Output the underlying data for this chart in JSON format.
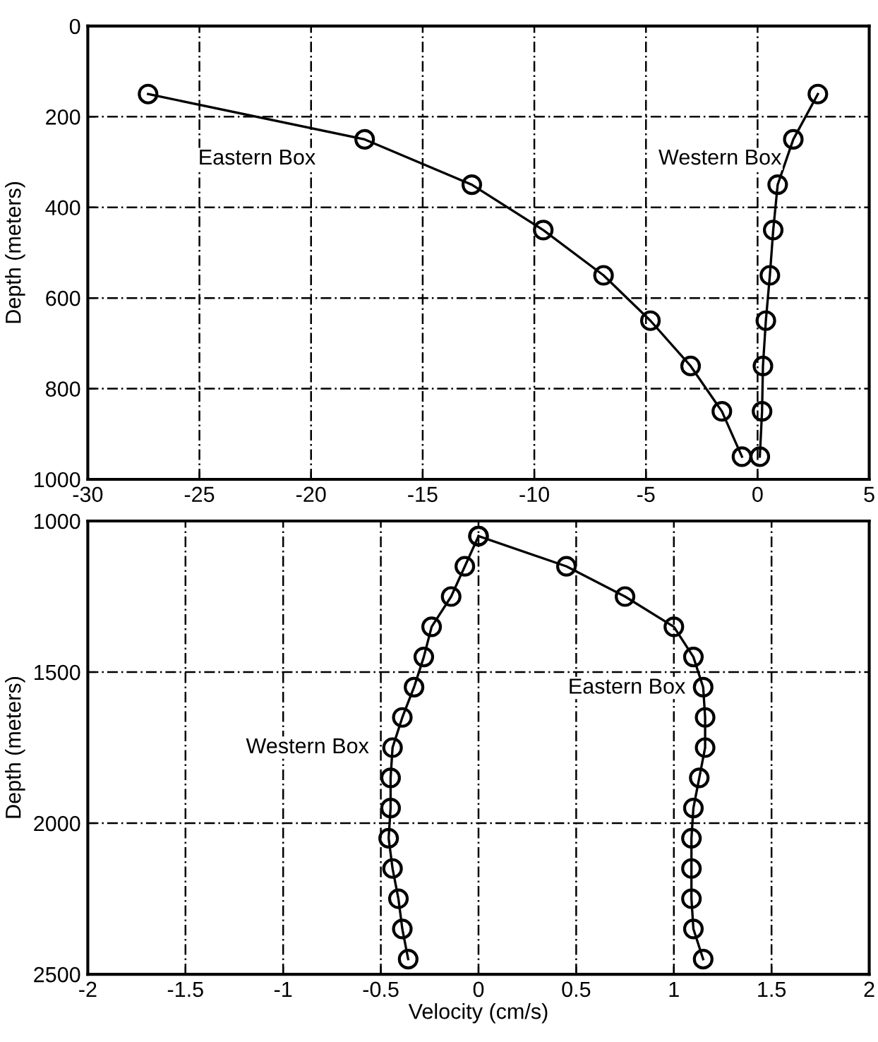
{
  "chart_data": [
    {
      "type": "line",
      "ylabel": "Depth (meters)",
      "xlim": [
        -30,
        5
      ],
      "xticks": [
        -30,
        -25,
        -20,
        -15,
        -10,
        -5,
        0,
        5
      ],
      "ylim": [
        1000,
        0
      ],
      "yticks": [
        0,
        200,
        400,
        600,
        800,
        1000
      ],
      "grid": true,
      "marker": "circle",
      "line_style": "solid",
      "series": [
        {
          "name": "Eastern Box",
          "color": "#000000",
          "x": [
            -27.3,
            -17.6,
            -12.8,
            -9.6,
            -6.9,
            -4.8,
            -3.0,
            -1.6,
            -0.7
          ],
          "values": [
            150,
            250,
            350,
            450,
            550,
            650,
            750,
            850,
            950
          ]
        },
        {
          "name": "Western Box",
          "color": "#000000",
          "x": [
            2.7,
            1.6,
            0.9,
            0.7,
            0.55,
            0.37,
            0.24,
            0.2,
            0.1
          ],
          "values": [
            150,
            250,
            350,
            450,
            550,
            650,
            750,
            850,
            950
          ]
        }
      ]
    },
    {
      "type": "line",
      "ylabel": "Depth (meters)",
      "xlabel": "Velocity (cm/s)",
      "xlim": [
        -2,
        2
      ],
      "xticks": [
        -2,
        -1.5,
        -1,
        -0.5,
        0,
        0.5,
        1,
        1.5,
        2
      ],
      "ylim": [
        2500,
        1000
      ],
      "yticks": [
        1000,
        1500,
        2000,
        2500
      ],
      "grid": true,
      "marker": "circle",
      "line_style": "solid",
      "series": [
        {
          "name": "Eastern Box",
          "color": "#000000",
          "x": [
            0.0,
            0.45,
            0.75,
            1.0,
            1.1,
            1.15,
            1.16,
            1.16,
            1.13,
            1.1,
            1.09,
            1.09,
            1.09,
            1.1,
            1.15
          ],
          "values": [
            1050,
            1150,
            1250,
            1350,
            1450,
            1550,
            1650,
            1750,
            1850,
            1950,
            2050,
            2150,
            2250,
            2350,
            2450
          ]
        },
        {
          "name": "Western Box",
          "color": "#000000",
          "x": [
            0.0,
            -0.07,
            -0.14,
            -0.24,
            -0.28,
            -0.33,
            -0.39,
            -0.44,
            -0.45,
            -0.45,
            -0.46,
            -0.44,
            -0.41,
            -0.39,
            -0.36
          ],
          "values": [
            1050,
            1150,
            1250,
            1350,
            1450,
            1550,
            1650,
            1750,
            1850,
            1950,
            2050,
            2150,
            2250,
            2350,
            2450
          ]
        }
      ]
    }
  ]
}
